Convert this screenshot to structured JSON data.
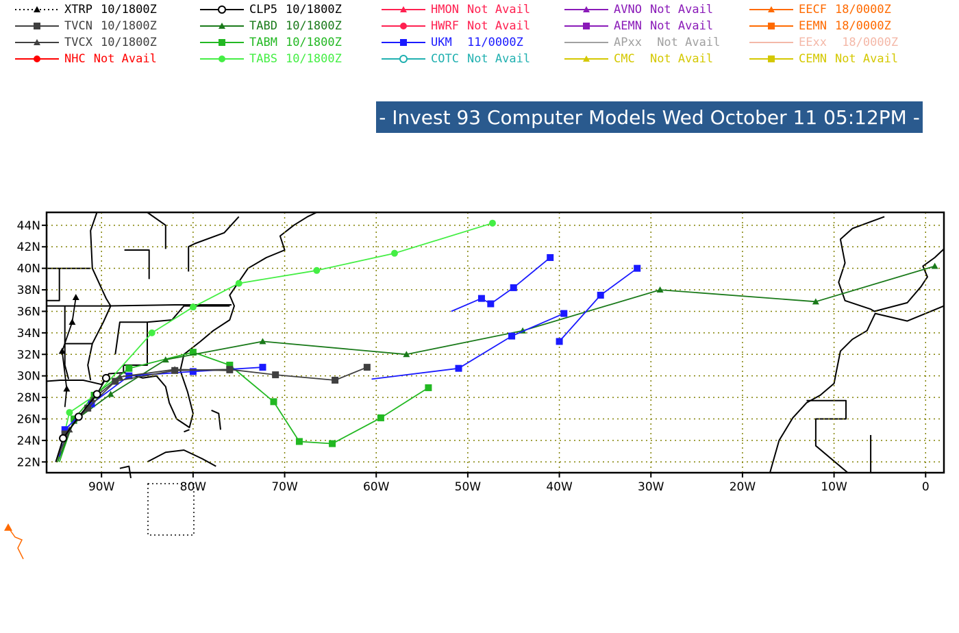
{
  "title": "- Invest 93 Computer Models Wed October 11 05:12PM -",
  "legend": [
    {
      "model": "XTRP",
      "status": "10/1800Z",
      "color": "#000000",
      "marker": "triangle",
      "dash": "dotted"
    },
    {
      "model": "TVCN",
      "status": "10/1800Z",
      "color": "#404040",
      "marker": "square",
      "dash": "solid"
    },
    {
      "model": "TVCX",
      "status": "10/1800Z",
      "color": "#404040",
      "marker": "triangle",
      "dash": "solid"
    },
    {
      "model": "NHC",
      "status": "Not Avail",
      "color": "#ff0000",
      "marker": "circle",
      "dash": "solid"
    },
    {
      "model": "CLP5",
      "status": "10/1800Z",
      "color": "#000000",
      "marker": "open-circle",
      "dash": "solid"
    },
    {
      "model": "TABD",
      "status": "10/1800Z",
      "color": "#1a7a1a",
      "marker": "triangle",
      "dash": "solid"
    },
    {
      "model": "TABM",
      "status": "10/1800Z",
      "color": "#22b822",
      "marker": "square",
      "dash": "solid"
    },
    {
      "model": "TABS",
      "status": "10/1800Z",
      "color": "#44ee44",
      "marker": "circle",
      "dash": "solid"
    },
    {
      "model": "HMON",
      "status": "Not Avail",
      "color": "#ff2050",
      "marker": "triangle",
      "dash": "solid"
    },
    {
      "model": "HWRF",
      "status": "Not Avail",
      "color": "#ff2050",
      "marker": "circle",
      "dash": "solid"
    },
    {
      "model": "UKM",
      "status": " 11/0000Z",
      "color": "#1a1aff",
      "marker": "square",
      "dash": "solid"
    },
    {
      "model": "COTC",
      "status": "Not Avail",
      "color": "#20b0b0",
      "marker": "open-circle",
      "dash": "solid"
    },
    {
      "model": "AVNO",
      "status": "Not Avail",
      "color": "#8a1ab8",
      "marker": "triangle",
      "dash": "solid"
    },
    {
      "model": "AEMN",
      "status": "Not Avail",
      "color": "#8a1ab8",
      "marker": "square",
      "dash": "solid"
    },
    {
      "model": "APxx",
      "status": " Not Avail",
      "color": "#a0a0a0",
      "marker": "none",
      "dash": "solid"
    },
    {
      "model": "CMC",
      "status": " Not Avail",
      "color": "#d4c800",
      "marker": "triangle",
      "dash": "solid"
    },
    {
      "model": "EECF",
      "status": "18/0000Z",
      "color": "#ff6a00",
      "marker": "triangle",
      "dash": "solid"
    },
    {
      "model": "EEMN",
      "status": "18/0000Z",
      "color": "#ff6a00",
      "marker": "square",
      "dash": "solid"
    },
    {
      "model": "EExx",
      "status": " 18/0000Z",
      "color": "#f4b8a8",
      "marker": "none",
      "dash": "solid"
    },
    {
      "model": "CEMN",
      "status": "Not Avail",
      "color": "#d4c800",
      "marker": "square",
      "dash": "solid"
    }
  ],
  "map": {
    "lon_ticks": [
      "90W",
      "80W",
      "70W",
      "60W",
      "50W",
      "40W",
      "30W",
      "20W",
      "10W",
      "0"
    ],
    "lat_ticks": [
      "44N",
      "42N",
      "40N",
      "38N",
      "36N",
      "34N",
      "32N",
      "30N",
      "28N",
      "26N",
      "24N",
      "22N"
    ],
    "lon_range": [
      -96,
      2
    ],
    "lat_range": [
      21,
      45.2
    ],
    "grid": "dotted"
  },
  "tracks": [
    {
      "model": "TABS",
      "color": "#44ee44",
      "marker": "circle",
      "points": [
        [
          -94.8,
          22
        ],
        [
          -93.5,
          26.6
        ],
        [
          -90.5,
          28.3
        ],
        [
          -84.5,
          34
        ],
        [
          -80,
          36.4
        ],
        [
          -75,
          38.6
        ],
        [
          -66.5,
          39.8
        ],
        [
          -58,
          41.4
        ],
        [
          -47.3,
          44.2
        ]
      ]
    },
    {
      "model": "TABM",
      "color": "#22b822",
      "marker": "square",
      "points": [
        [
          -94.6,
          22
        ],
        [
          -93,
          26
        ],
        [
          -90.8,
          28.2
        ],
        [
          -87,
          30.7
        ],
        [
          -80,
          32.2
        ],
        [
          -76,
          31
        ],
        [
          -71.2,
          27.6
        ],
        [
          -68.4,
          23.9
        ],
        [
          -64.8,
          23.7
        ],
        [
          -59.5,
          26.1
        ],
        [
          -54.3,
          28.9
        ]
      ]
    },
    {
      "model": "TABD",
      "color": "#1a7a1a",
      "marker": "triangle",
      "points": [
        [
          -94.8,
          22
        ],
        [
          -93,
          25.8
        ],
        [
          -89,
          28.3
        ],
        [
          -83,
          31.5
        ],
        [
          -72.4,
          33.2
        ],
        [
          -56.7,
          32
        ],
        [
          -44,
          34.2
        ],
        [
          -29,
          38
        ],
        [
          -12,
          36.9
        ],
        [
          1,
          40.2
        ]
      ]
    },
    {
      "model": "UKM",
      "color": "#1a1aff",
      "marker": "square",
      "points": [
        [
          -94.6,
          22.5
        ],
        [
          -94,
          25
        ],
        [
          -91.1,
          27.4
        ],
        [
          -87,
          30
        ],
        [
          -80,
          30.4
        ],
        [
          -72.4,
          30.8
        ]
      ]
    },
    {
      "model": "UKM",
      "color": "#1a1aff",
      "marker": "square",
      "points": [
        [
          -60.5,
          29.7
        ],
        [
          -51,
          30.7
        ],
        [
          -45.2,
          33.7
        ],
        [
          -39.5,
          35.8
        ]
      ]
    },
    {
      "model": "UKM",
      "color": "#1a1aff",
      "marker": "square",
      "points": [
        [
          -51.8,
          36
        ],
        [
          -48.5,
          37.2
        ],
        [
          -47.5,
          36.7
        ],
        [
          -45,
          38.2
        ],
        [
          -41,
          41
        ]
      ]
    },
    {
      "model": "UKM",
      "color": "#1a1aff",
      "marker": "square",
      "points": [
        [
          -40,
          33.2
        ],
        [
          -35.5,
          37.5
        ],
        [
          -31.5,
          40
        ]
      ]
    },
    {
      "model": "TVCN",
      "color": "#404040",
      "marker": "square",
      "points": [
        [
          -95,
          22
        ],
        [
          -94,
          24.6
        ],
        [
          -91.5,
          27
        ],
        [
          -88.5,
          29.5
        ],
        [
          -82,
          30.5
        ],
        [
          -76,
          30.6
        ],
        [
          -71,
          30.1
        ],
        [
          -64.5,
          29.6
        ],
        [
          -61,
          30.8
        ]
      ]
    },
    {
      "model": "TVCX",
      "color": "#404040",
      "marker": "triangle",
      "points": [
        [
          -95,
          22
        ],
        [
          -93.5,
          25
        ],
        [
          -91,
          27.8
        ],
        [
          -88,
          29.9
        ],
        [
          -82,
          30.6
        ],
        [
          -76,
          30.5
        ]
      ]
    },
    {
      "model": "CLP5",
      "color": "#000000",
      "marker": "open-circle",
      "points": [
        [
          -95,
          22
        ],
        [
          -94.2,
          24.2
        ],
        [
          -92.5,
          26.2
        ],
        [
          -90.5,
          28.3
        ],
        [
          -89.5,
          29.8
        ]
      ]
    },
    {
      "model": "XTRP",
      "color": "#000000",
      "marker": "triangle",
      "points": [
        [
          -94,
          27.1
        ],
        [
          -93.8,
          28.8
        ],
        [
          -94.3,
          32.3
        ],
        [
          -93.2,
          35
        ],
        [
          -92.8,
          37.3
        ]
      ]
    }
  ]
}
